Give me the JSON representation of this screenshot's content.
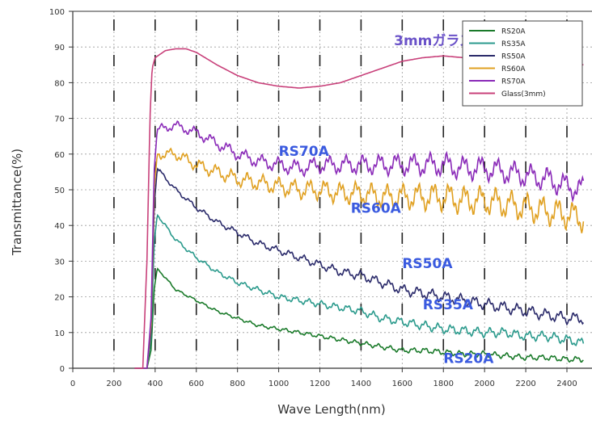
{
  "chart_data": {
    "type": "line",
    "title": "",
    "xlabel": "Wave Length(nm)",
    "ylabel": "Transmittance(%)",
    "xlim": [
      0,
      2500
    ],
    "ylim": [
      0,
      100
    ],
    "x_ticks": [
      0,
      200,
      400,
      600,
      800,
      1000,
      1200,
      1400,
      1600,
      1800,
      2000,
      2200,
      2400
    ],
    "y_ticks": [
      0,
      10,
      20,
      30,
      40,
      50,
      60,
      70,
      80,
      90,
      100
    ],
    "grid": true,
    "legend_position": "top-right",
    "series": [
      {
        "name": "RS20A",
        "color": "#1a7a2a",
        "noise": 0.6,
        "points": [
          [
            300,
            0
          ],
          [
            360,
            0
          ],
          [
            380,
            5
          ],
          [
            395,
            22
          ],
          [
            410,
            28
          ],
          [
            500,
            22
          ],
          [
            600,
            19
          ],
          [
            700,
            16
          ],
          [
            800,
            14
          ],
          [
            900,
            12
          ],
          [
            1000,
            11
          ],
          [
            1100,
            10
          ],
          [
            1200,
            9
          ],
          [
            1300,
            8
          ],
          [
            1400,
            7
          ],
          [
            1500,
            6
          ],
          [
            1600,
            5
          ],
          [
            1700,
            5
          ],
          [
            1800,
            4.5
          ],
          [
            1900,
            4
          ],
          [
            2000,
            4
          ],
          [
            2100,
            3.5
          ],
          [
            2200,
            3
          ],
          [
            2300,
            3
          ],
          [
            2400,
            2.5
          ],
          [
            2480,
            2.5
          ]
        ]
      },
      {
        "name": "RS35A",
        "color": "#2a9a8c",
        "noise": 1.0,
        "points": [
          [
            300,
            0
          ],
          [
            360,
            0
          ],
          [
            380,
            8
          ],
          [
            395,
            35
          ],
          [
            410,
            43
          ],
          [
            500,
            36
          ],
          [
            600,
            31
          ],
          [
            700,
            27
          ],
          [
            800,
            24
          ],
          [
            900,
            22
          ],
          [
            1000,
            20
          ],
          [
            1100,
            19
          ],
          [
            1200,
            18
          ],
          [
            1300,
            17
          ],
          [
            1400,
            16
          ],
          [
            1500,
            14
          ],
          [
            1600,
            13
          ],
          [
            1700,
            12
          ],
          [
            1800,
            11
          ],
          [
            1900,
            10.5
          ],
          [
            2000,
            10
          ],
          [
            2100,
            10
          ],
          [
            2200,
            9
          ],
          [
            2300,
            9
          ],
          [
            2400,
            8
          ],
          [
            2480,
            7
          ]
        ]
      },
      {
        "name": "RS50A",
        "color": "#2a2a6a",
        "noise": 1.2,
        "points": [
          [
            300,
            0
          ],
          [
            360,
            0
          ],
          [
            380,
            10
          ],
          [
            395,
            45
          ],
          [
            410,
            56
          ],
          [
            500,
            50
          ],
          [
            600,
            45
          ],
          [
            700,
            41
          ],
          [
            800,
            38
          ],
          [
            900,
            35
          ],
          [
            1000,
            33
          ],
          [
            1100,
            31
          ],
          [
            1200,
            29
          ],
          [
            1300,
            27
          ],
          [
            1400,
            26
          ],
          [
            1500,
            24
          ],
          [
            1600,
            22
          ],
          [
            1700,
            21
          ],
          [
            1800,
            20
          ],
          [
            1900,
            19
          ],
          [
            2000,
            18
          ],
          [
            2100,
            17
          ],
          [
            2200,
            16
          ],
          [
            2300,
            15
          ],
          [
            2400,
            14
          ],
          [
            2480,
            14
          ]
        ]
      },
      {
        "name": "RS60A",
        "color": "#e0a020",
        "noise": 3.0,
        "points": [
          [
            300,
            0
          ],
          [
            360,
            0
          ],
          [
            380,
            12
          ],
          [
            395,
            50
          ],
          [
            410,
            60
          ],
          [
            500,
            60
          ],
          [
            600,
            57
          ],
          [
            700,
            55
          ],
          [
            800,
            53
          ],
          [
            900,
            52
          ],
          [
            1000,
            51
          ],
          [
            1100,
            50
          ],
          [
            1200,
            50
          ],
          [
            1300,
            49
          ],
          [
            1400,
            49
          ],
          [
            1500,
            48
          ],
          [
            1600,
            48
          ],
          [
            1700,
            48
          ],
          [
            1800,
            48
          ],
          [
            1900,
            47
          ],
          [
            2000,
            47
          ],
          [
            2100,
            46
          ],
          [
            2200,
            45
          ],
          [
            2300,
            44
          ],
          [
            2400,
            43
          ],
          [
            2480,
            42
          ]
        ]
      },
      {
        "name": "RS70A",
        "color": "#8a2ab8",
        "noise": 2.5,
        "points": [
          [
            300,
            0
          ],
          [
            360,
            0
          ],
          [
            380,
            14
          ],
          [
            395,
            55
          ],
          [
            410,
            67
          ],
          [
            500,
            68
          ],
          [
            600,
            66
          ],
          [
            700,
            63
          ],
          [
            800,
            60
          ],
          [
            900,
            58
          ],
          [
            1000,
            57
          ],
          [
            1100,
            56
          ],
          [
            1200,
            57
          ],
          [
            1300,
            57
          ],
          [
            1400,
            57
          ],
          [
            1500,
            57
          ],
          [
            1600,
            57
          ],
          [
            1700,
            57
          ],
          [
            1800,
            57
          ],
          [
            1900,
            56
          ],
          [
            2000,
            56
          ],
          [
            2100,
            55
          ],
          [
            2200,
            54
          ],
          [
            2300,
            53
          ],
          [
            2400,
            51
          ],
          [
            2480,
            50
          ]
        ]
      },
      {
        "name": "Glass(3mm)",
        "color": "#c8407a",
        "noise": 0,
        "points": [
          [
            300,
            0
          ],
          [
            340,
            0
          ],
          [
            360,
            30
          ],
          [
            375,
            70
          ],
          [
            385,
            84
          ],
          [
            400,
            87
          ],
          [
            450,
            89
          ],
          [
            500,
            89.5
          ],
          [
            550,
            89.5
          ],
          [
            600,
            88.5
          ],
          [
            700,
            85
          ],
          [
            800,
            82
          ],
          [
            900,
            80
          ],
          [
            1000,
            79
          ],
          [
            1100,
            78.5
          ],
          [
            1200,
            79
          ],
          [
            1300,
            80
          ],
          [
            1400,
            82
          ],
          [
            1500,
            84
          ],
          [
            1600,
            86
          ],
          [
            1700,
            87
          ],
          [
            1800,
            87.5
          ],
          [
            1900,
            87
          ],
          [
            2000,
            86
          ],
          [
            2100,
            85
          ],
          [
            2200,
            85
          ],
          [
            2300,
            86
          ],
          [
            2400,
            86
          ],
          [
            2480,
            85
          ]
        ]
      }
    ],
    "annotations": [
      {
        "text": "3mmガラス",
        "x": 1560,
        "y": 90.5,
        "color": "#6a52c8"
      },
      {
        "text": "RS70A",
        "x": 1000,
        "y": 59.5,
        "color": "#3a5adf"
      },
      {
        "text": "RS60A",
        "x": 1350,
        "y": 43.5,
        "color": "#3a5adf"
      },
      {
        "text": "RS50A",
        "x": 1600,
        "y": 28,
        "color": "#3a5adf"
      },
      {
        "text": "RS35A",
        "x": 1700,
        "y": 16.5,
        "color": "#3a5adf"
      },
      {
        "text": "RS20A",
        "x": 1800,
        "y": 1.5,
        "color": "#3a5adf"
      }
    ]
  }
}
